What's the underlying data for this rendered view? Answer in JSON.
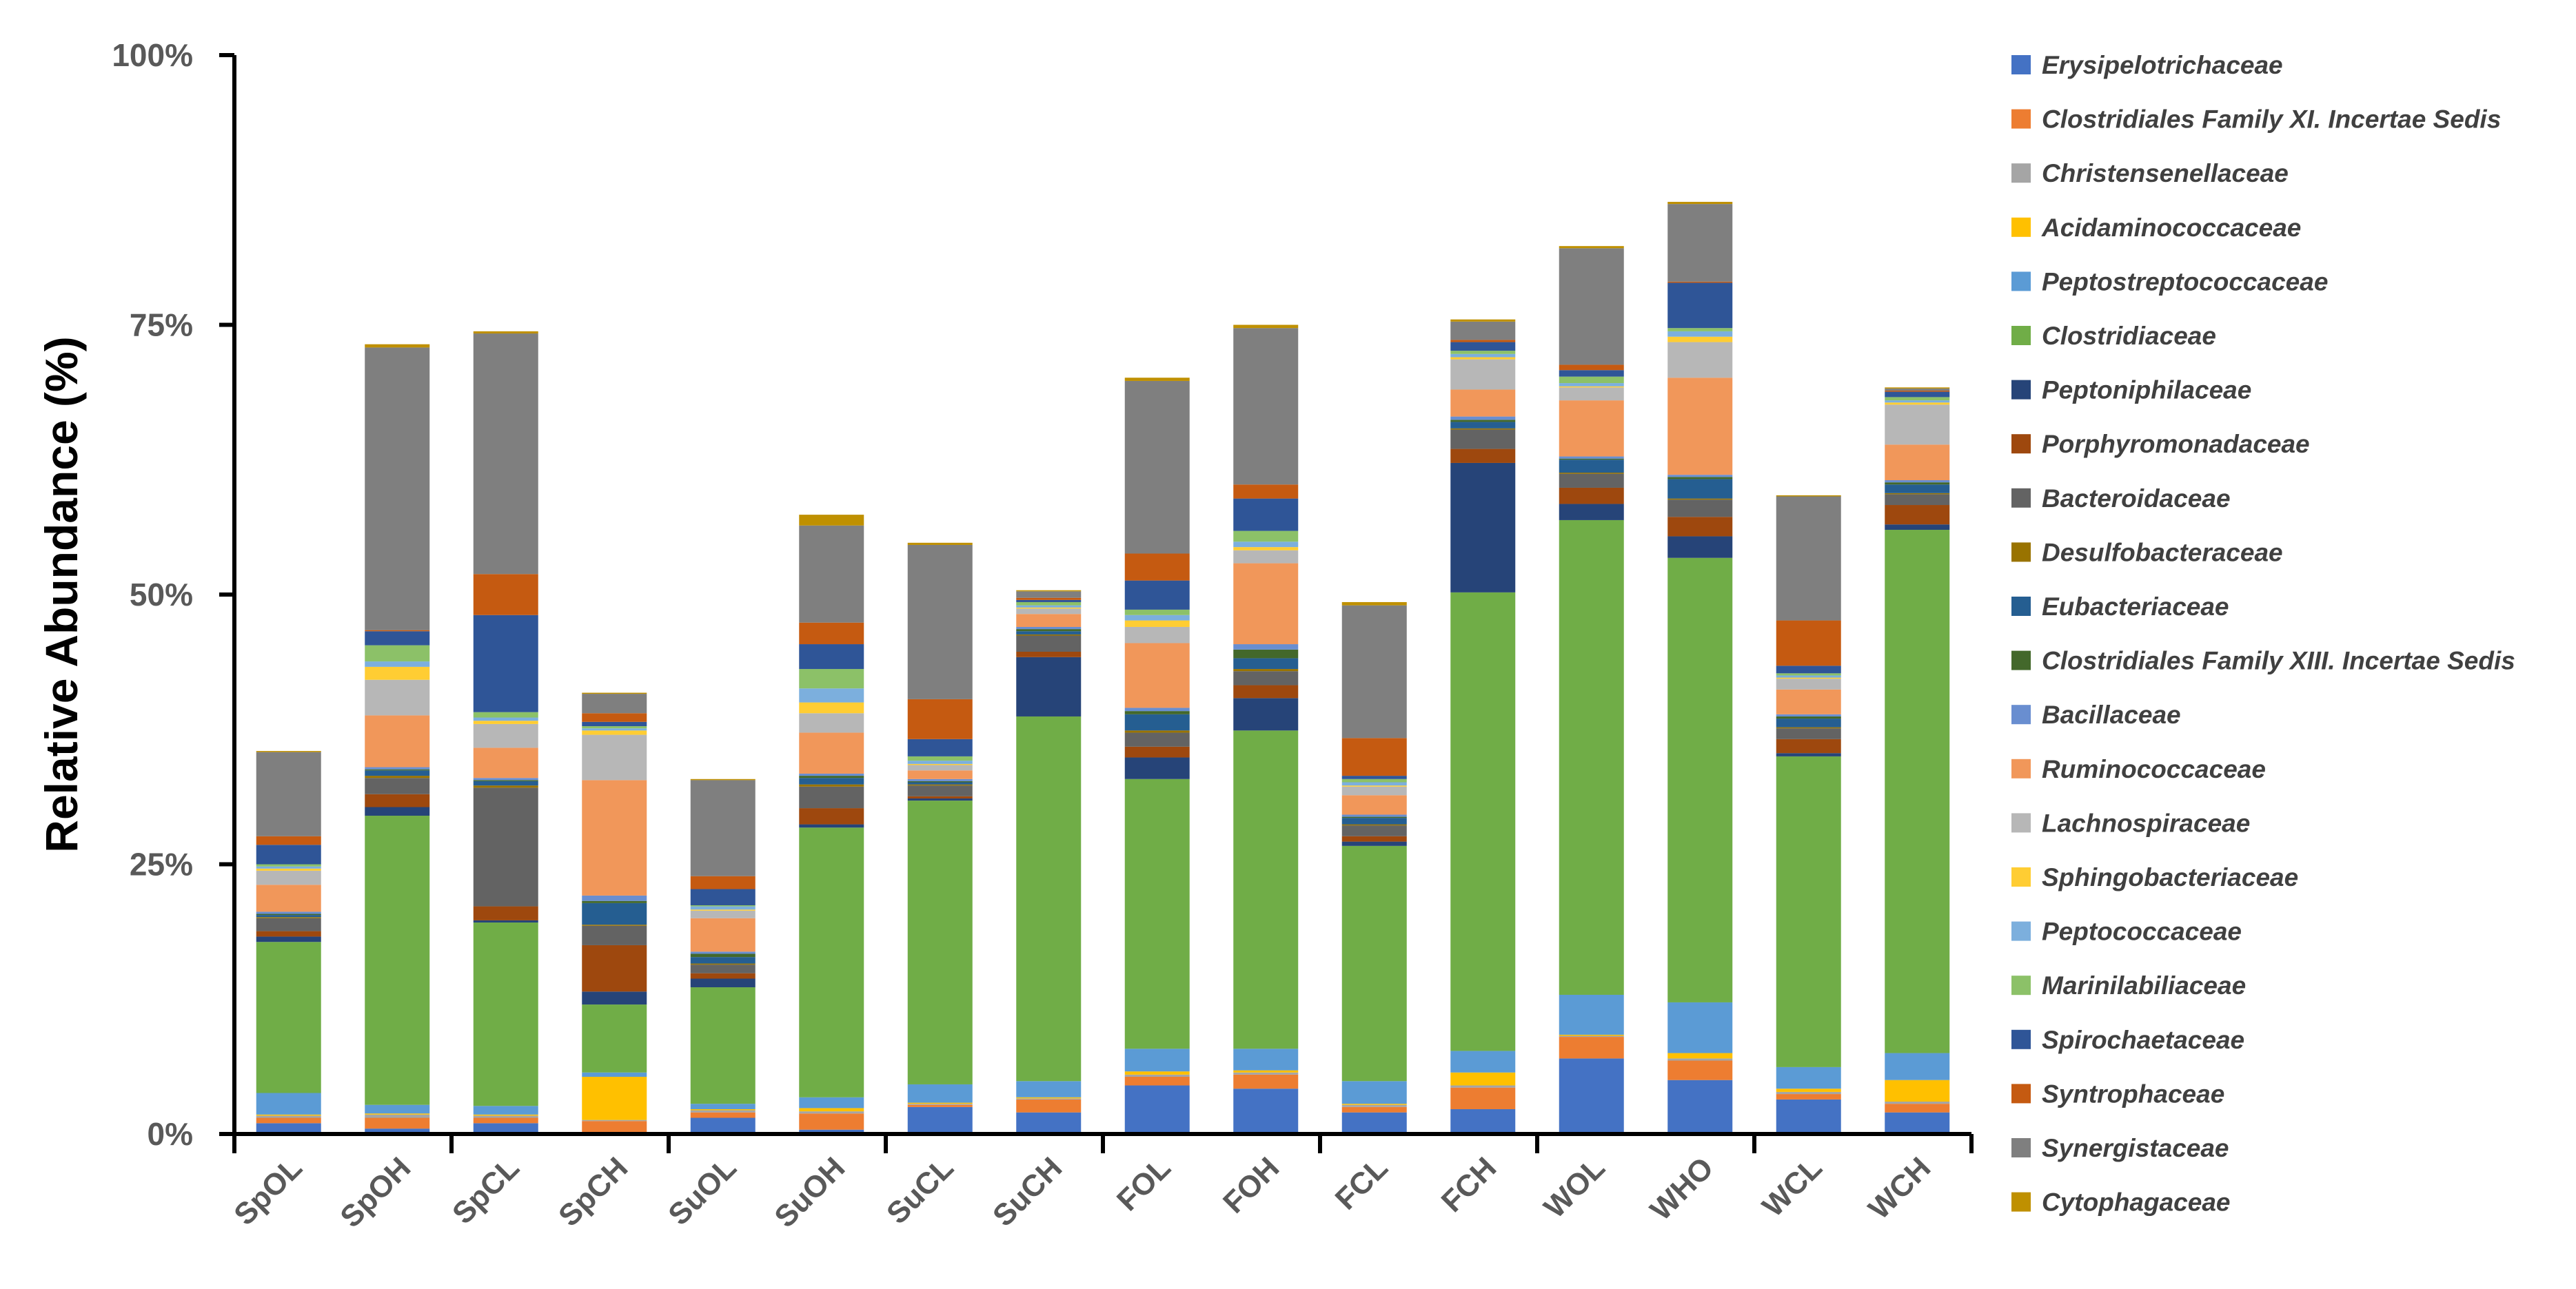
{
  "chart_data": {
    "type": "bar",
    "stacked": true,
    "title": "",
    "xlabel": "",
    "ylabel": "Relative Abundance (%)",
    "ylim": [
      0,
      100
    ],
    "yticks": [
      0,
      25,
      50,
      75,
      100
    ],
    "ytick_labels": [
      "0%",
      "25%",
      "50%",
      "75%",
      "100%"
    ],
    "legend_position": "right",
    "categories": [
      "SpOL",
      "SpOH",
      "SpCL",
      "SpCH",
      "SuOL",
      "SuOH",
      "SuCL",
      "SuCH",
      "FOL",
      "FOH",
      "FCL",
      "FCH",
      "WOL",
      "WHO",
      "WCL",
      "WCH"
    ],
    "series": [
      {
        "name": "Erysipelotrichaceae",
        "color": "#4472C4",
        "values": [
          1.0,
          0.5,
          1.0,
          0.1,
          1.5,
          0.4,
          2.5,
          2.0,
          4.5,
          4.2,
          2.0,
          2.3,
          7.0,
          5.0,
          3.2,
          2.0
        ]
      },
      {
        "name": "Clostridiales Family XI. Incertae Sedis",
        "color": "#ED7D31",
        "values": [
          0.5,
          1.0,
          0.5,
          1.1,
          0.5,
          1.5,
          0.2,
          1.2,
          0.8,
          1.3,
          0.5,
          2.0,
          2.0,
          1.8,
          0.5,
          0.8
        ]
      },
      {
        "name": "Christensenellaceae",
        "color": "#A5A5A5",
        "values": [
          0.2,
          0.3,
          0.2,
          0.1,
          0.2,
          0.2,
          0.1,
          0.1,
          0.2,
          0.2,
          0.2,
          0.2,
          0.1,
          0.2,
          0.2,
          0.2
        ]
      },
      {
        "name": "Acidaminococcaceae",
        "color": "#FFC000",
        "values": [
          0.1,
          0.1,
          0.1,
          4.0,
          0.1,
          0.3,
          0.1,
          0.1,
          0.3,
          0.2,
          0.1,
          1.2,
          0.1,
          0.5,
          0.3,
          2.0
        ]
      },
      {
        "name": "Peptostreptococcaceae",
        "color": "#5B9BD5",
        "values": [
          2.0,
          0.8,
          0.8,
          0.4,
          0.5,
          1.0,
          1.7,
          1.5,
          2.1,
          2.0,
          2.1,
          2.0,
          3.7,
          4.7,
          2.0,
          2.5
        ]
      },
      {
        "name": "Clostridiaceae",
        "color": "#70AD47",
        "values": [
          14.0,
          26.8,
          17.0,
          6.3,
          10.8,
          25.0,
          26.3,
          33.8,
          25.0,
          29.5,
          21.8,
          42.5,
          44.0,
          41.2,
          28.8,
          48.5
        ]
      },
      {
        "name": "Peptoniphilaceae",
        "color": "#264478",
        "values": [
          0.5,
          0.8,
          0.2,
          1.2,
          0.8,
          0.3,
          0.2,
          5.5,
          2.0,
          3.0,
          0.4,
          12.0,
          1.5,
          2.0,
          0.3,
          0.5
        ]
      },
      {
        "name": "Porphyromonadaceae",
        "color": "#9E480E",
        "values": [
          0.5,
          1.2,
          1.3,
          4.3,
          0.5,
          1.5,
          0.2,
          0.5,
          1.0,
          1.2,
          0.5,
          1.3,
          1.5,
          1.8,
          1.3,
          1.8
        ]
      },
      {
        "name": "Bacteroidaceae",
        "color": "#636363",
        "values": [
          1.2,
          1.5,
          11.0,
          1.8,
          0.8,
          2.0,
          1.0,
          1.5,
          1.3,
          1.3,
          1.0,
          1.8,
          1.3,
          1.6,
          1.0,
          1.0
        ]
      },
      {
        "name": "Desulfobacteraceae",
        "color": "#997300",
        "values": [
          0.1,
          0.2,
          0.2,
          0.1,
          0.1,
          0.2,
          0.1,
          0.1,
          0.2,
          0.2,
          0.1,
          0.1,
          0.1,
          0.1,
          0.1,
          0.1
        ]
      },
      {
        "name": "Eubacteriaceae",
        "color": "#255E91",
        "values": [
          0.2,
          0.5,
          0.4,
          2.0,
          0.6,
          0.6,
          0.2,
          0.3,
          1.5,
          1.0,
          0.6,
          0.6,
          1.2,
          1.8,
          0.8,
          0.8
        ]
      },
      {
        "name": "Clostridiales Family XIII. Incertae Sedis",
        "color": "#43682B",
        "values": [
          0.1,
          0.1,
          0.1,
          0.2,
          0.3,
          0.2,
          0.1,
          0.2,
          0.3,
          0.8,
          0.1,
          0.2,
          0.1,
          0.2,
          0.2,
          0.2
        ]
      },
      {
        "name": "Bacillaceae",
        "color": "#698ED0",
        "values": [
          0.2,
          0.2,
          0.2,
          0.5,
          0.2,
          0.2,
          0.2,
          0.2,
          0.3,
          0.5,
          0.2,
          0.3,
          0.2,
          0.2,
          0.2,
          0.2
        ]
      },
      {
        "name": "Ruminococcaceae",
        "color": "#F1975A",
        "values": [
          2.5,
          4.8,
          2.8,
          10.7,
          3.1,
          3.8,
          0.8,
          1.2,
          6.0,
          7.5,
          1.8,
          2.5,
          5.2,
          9.0,
          2.3,
          3.3
        ]
      },
      {
        "name": "Lachnospiraceae",
        "color": "#B7B7B7",
        "values": [
          1.3,
          3.3,
          2.2,
          4.2,
          0.7,
          1.8,
          0.5,
          0.5,
          1.5,
          1.2,
          0.8,
          2.8,
          1.2,
          3.3,
          1.0,
          3.7
        ]
      },
      {
        "name": "Sphingobacteriaceae",
        "color": "#FFCD33",
        "values": [
          0.2,
          1.2,
          0.3,
          0.4,
          0.1,
          1.0,
          0.1,
          0.1,
          0.6,
          0.3,
          0.1,
          0.2,
          0.1,
          0.5,
          0.1,
          0.2
        ]
      },
      {
        "name": "Peptococcaceae",
        "color": "#7CAFDD",
        "values": [
          0.2,
          0.5,
          0.3,
          0.2,
          0.3,
          1.3,
          0.3,
          0.2,
          0.5,
          0.5,
          0.3,
          0.3,
          0.3,
          0.5,
          0.2,
          0.2
        ]
      },
      {
        "name": "Marinilabiliaceae",
        "color": "#8CC168",
        "values": [
          0.2,
          1.5,
          0.5,
          0.2,
          0.1,
          1.8,
          0.4,
          0.3,
          0.5,
          1.0,
          0.3,
          0.3,
          0.6,
          0.3,
          0.2,
          0.3
        ]
      },
      {
        "name": "Spirochaetaceae",
        "color": "#2F5597",
        "values": [
          1.8,
          1.3,
          9.0,
          0.4,
          1.5,
          2.3,
          1.6,
          0.2,
          2.7,
          3.0,
          0.3,
          0.8,
          0.6,
          4.2,
          0.7,
          0.5
        ]
      },
      {
        "name": "Syntrophaceae",
        "color": "#C55A11",
        "values": [
          0.8,
          0.1,
          3.8,
          0.8,
          1.2,
          2.0,
          3.7,
          0.2,
          2.5,
          1.3,
          3.5,
          0.2,
          0.5,
          0.1,
          4.2,
          0.1
        ]
      },
      {
        "name": "Synergistaceae",
        "color": "#7F7F7F",
        "values": [
          7.8,
          26.2,
          22.3,
          1.8,
          8.9,
          9.0,
          14.3,
          0.6,
          16.0,
          14.5,
          12.3,
          1.7,
          10.8,
          7.2,
          11.5,
          0.2
        ]
      },
      {
        "name": "Cytophagaceae",
        "color": "#BF9000",
        "values": [
          0.1,
          0.3,
          0.2,
          0.1,
          0.1,
          1.0,
          0.2,
          0.1,
          0.3,
          0.3,
          0.3,
          0.2,
          0.2,
          0.2,
          0.1,
          0.1
        ]
      }
    ]
  }
}
